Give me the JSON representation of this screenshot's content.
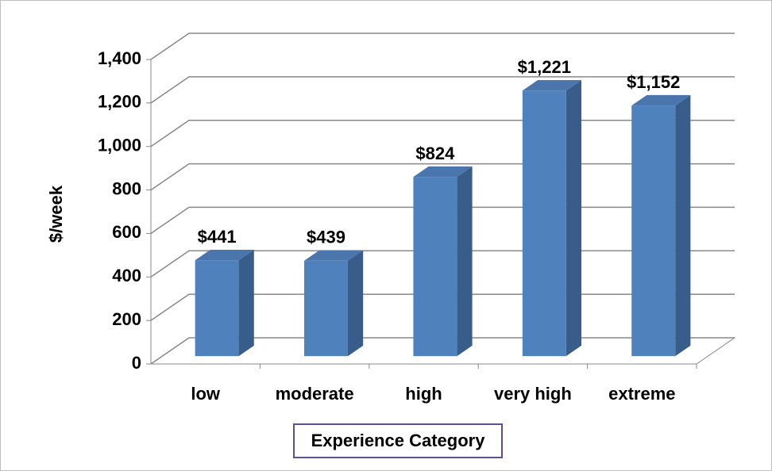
{
  "chart_data": {
    "type": "bar3d",
    "x_label": "Experience Category",
    "y_label": "$/week",
    "categories": [
      "low",
      "moderate",
      "high",
      "very high",
      "extreme"
    ],
    "values": [
      441,
      439,
      824,
      1221,
      1152
    ],
    "value_labels": [
      "$441",
      "$439",
      "$824",
      "$1,221",
      "$1,152"
    ],
    "color": "#4f81bd",
    "ylim": [
      0,
      1400
    ],
    "yticks": [
      0,
      200,
      400,
      600,
      800,
      {
        "value": 1000,
        "label": "1,000"
      },
      {
        "value": 1200,
        "label": "1,200"
      },
      {
        "value": 1400,
        "label": "1,400"
      }
    ],
    "grid": true
  }
}
